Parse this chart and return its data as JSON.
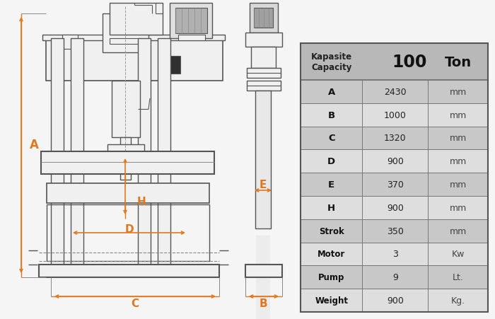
{
  "bg_color": "#f5f5f5",
  "table_bg_header": "#b8b8b8",
  "table_bg_row_A": "#c8c8c8",
  "table_bg_row_B": "#dedede",
  "table_border": "#888888",
  "orange": "#e07820",
  "line_color": "#555555",
  "fill_light": "#f0f0f0",
  "fill_motor": "#a0a0a0",
  "header_label": "Kapasite\nCapacity",
  "header_value": "100",
  "header_unit": "Ton",
  "rows": [
    {
      "label": "A",
      "value": "2430",
      "unit": "mm"
    },
    {
      "label": "B",
      "value": "1000",
      "unit": "mm"
    },
    {
      "label": "C",
      "value": "1320",
      "unit": "mm"
    },
    {
      "label": "D",
      "value": "900",
      "unit": "mm"
    },
    {
      "label": "E",
      "value": "370",
      "unit": "mm"
    },
    {
      "label": "H",
      "value": "900",
      "unit": "mm"
    },
    {
      "label": "Strok",
      "value": "350",
      "unit": "mm"
    },
    {
      "label": "Motor",
      "value": "3",
      "unit": "Kw"
    },
    {
      "label": "Pump",
      "value": "9",
      "unit": "Lt."
    },
    {
      "label": "Weight",
      "value": "900",
      "unit": "Kg."
    }
  ]
}
